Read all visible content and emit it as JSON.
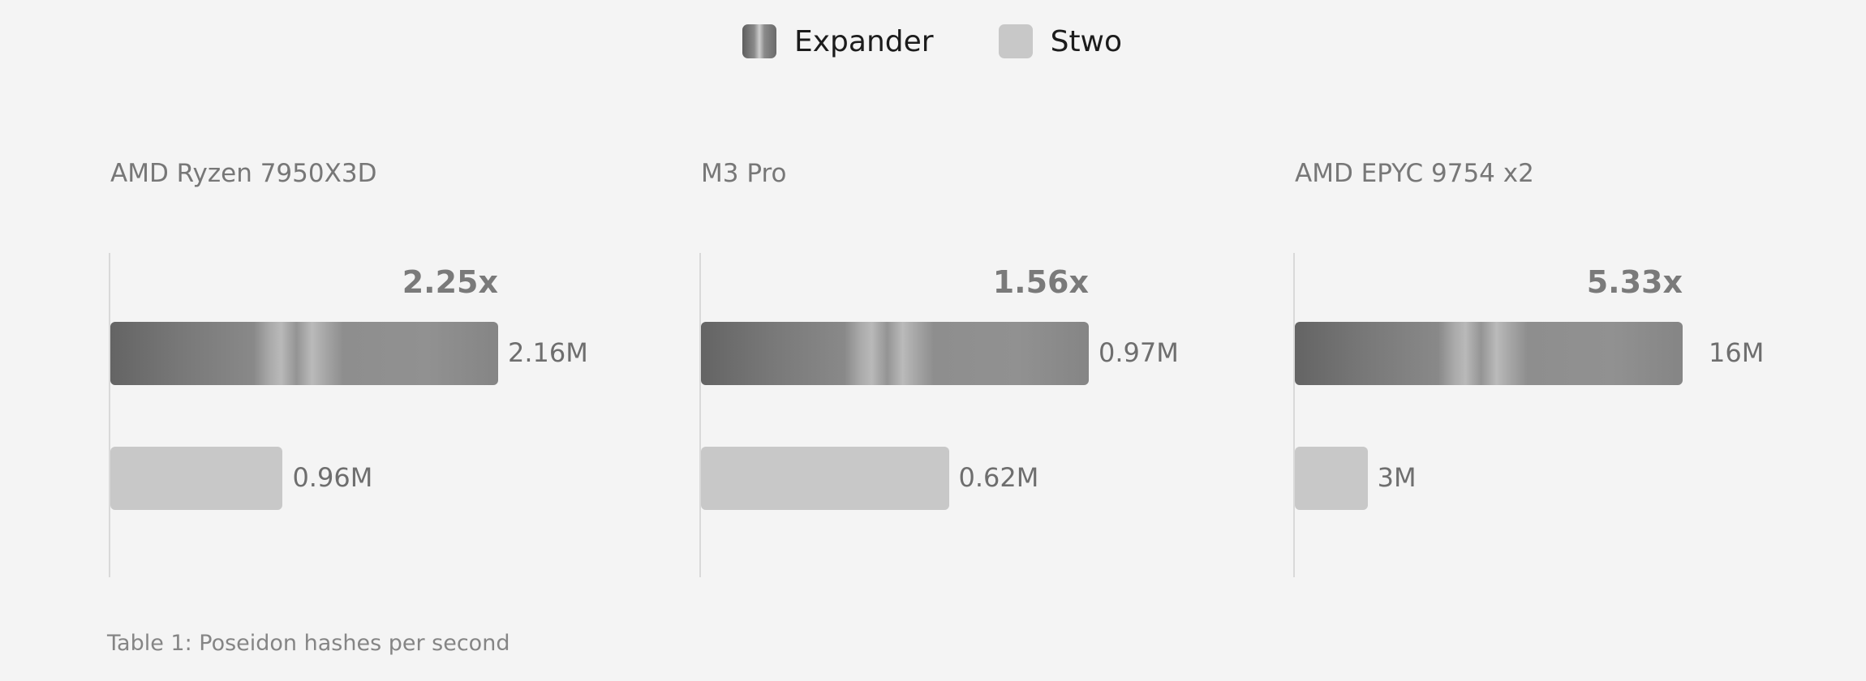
{
  "legend": {
    "items": [
      {
        "label": "Expander",
        "color": "#7a7a7a"
      },
      {
        "label": "Stwo",
        "color": "#c8c8c8"
      }
    ]
  },
  "caption": "Table 1: Poseidon hashes per second",
  "chart_data": [
    {
      "type": "bar",
      "title": "AMD Ryzen 7950X3D",
      "orientation": "horizontal",
      "series": [
        {
          "name": "Expander",
          "value": 2.16,
          "label": "2.16M"
        },
        {
          "name": "Stwo",
          "value": 0.96,
          "label": "0.96M"
        }
      ],
      "ratio_label": "2.25x",
      "xlim": [
        0,
        2.16
      ]
    },
    {
      "type": "bar",
      "title": "M3 Pro",
      "orientation": "horizontal",
      "series": [
        {
          "name": "Expander",
          "value": 0.97,
          "label": "0.97M"
        },
        {
          "name": "Stwo",
          "value": 0.62,
          "label": "0.62M"
        }
      ],
      "ratio_label": "1.56x",
      "xlim": [
        0,
        0.97
      ]
    },
    {
      "type": "bar",
      "title": "AMD EPYC 9754 x2",
      "orientation": "horizontal",
      "series": [
        {
          "name": "Expander",
          "value": 16,
          "label": "16M"
        },
        {
          "name": "Stwo",
          "value": 3,
          "label": "3M"
        }
      ],
      "ratio_label": "5.33x",
      "xlim": [
        0,
        16
      ]
    }
  ]
}
